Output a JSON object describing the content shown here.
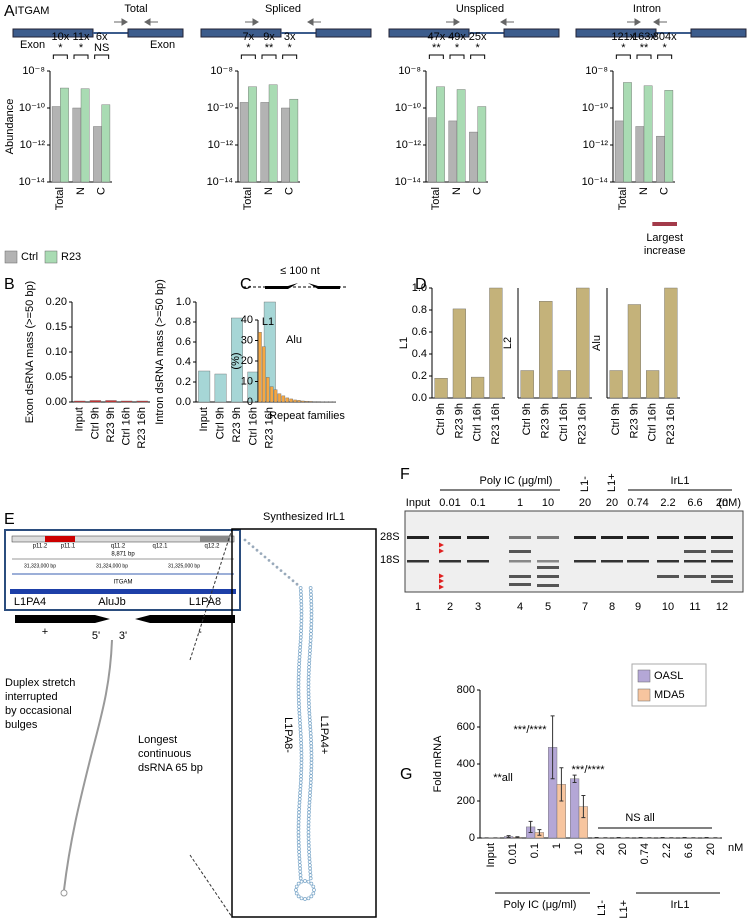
{
  "panel_labels": [
    "A",
    "B",
    "C",
    "D",
    "E",
    "F",
    "G"
  ],
  "chart_data": [
    {
      "type": "bar",
      "title": "Total",
      "gene": "ITGAM",
      "exon_labels": [
        "Exon",
        "Exon"
      ],
      "ylabel": "Abundance",
      "log_y": true,
      "categories": [
        "Total",
        "N",
        "C"
      ],
      "series": [
        {
          "name": "Ctrl",
          "color": "#b3b3b3",
          "values": [
            1.2e-10,
            1e-10,
            1e-11
          ]
        },
        {
          "name": "R23",
          "color": "#a9dbb3",
          "values": [
            1.2e-09,
            1.1e-09,
            1.5e-10
          ]
        }
      ],
      "ylim": [
        1e-14,
        1e-08
      ],
      "yticks": [
        {
          "value": 1e-14,
          "label": "10⁻¹⁴"
        },
        {
          "value": 1e-12,
          "label": "10⁻¹²"
        },
        {
          "value": 1e-10,
          "label": "10⁻¹⁰"
        },
        {
          "value": 1e-08,
          "label": "10⁻⁸"
        }
      ],
      "annotations": [
        {
          "fold": "10x",
          "sig": "*"
        },
        {
          "fold": "11x",
          "sig": "*"
        },
        {
          "fold": "6x",
          "sig": "NS"
        }
      ],
      "legend": "bottom-left"
    },
    {
      "type": "bar",
      "title": "Spliced",
      "log_y": true,
      "categories": [
        "Total",
        "N",
        "C"
      ],
      "series": [
        {
          "color": "#b3b3b3",
          "values": [
            2e-10,
            2e-10,
            1e-10
          ]
        },
        {
          "color": "#a9dbb3",
          "values": [
            1.4e-09,
            1.8e-09,
            3e-10
          ]
        }
      ],
      "ylim": [
        1e-14,
        1e-08
      ],
      "yticks": [
        {
          "value": 1e-14,
          "label": "10⁻¹⁴"
        },
        {
          "value": 1e-12,
          "label": "10⁻¹²"
        },
        {
          "value": 1e-10,
          "label": "10⁻¹⁰"
        },
        {
          "value": 1e-08,
          "label": "10⁻⁸"
        }
      ],
      "annotations": [
        {
          "fold": "7x",
          "sig": "*"
        },
        {
          "fold": "9x",
          "sig": "**"
        },
        {
          "fold": "3x",
          "sig": "*"
        }
      ]
    },
    {
      "type": "bar",
      "title": "Unspliced",
      "log_y": true,
      "categories": [
        "Total",
        "N",
        "C"
      ],
      "series": [
        {
          "color": "#b3b3b3",
          "values": [
            3e-11,
            2e-11,
            5e-12
          ]
        },
        {
          "color": "#a9dbb3",
          "values": [
            1.4e-09,
            1e-09,
            1.2e-10
          ]
        }
      ],
      "ylim": [
        1e-14,
        1e-08
      ],
      "yticks": [
        {
          "value": 1e-14,
          "label": "10⁻¹⁴"
        },
        {
          "value": 1e-12,
          "label": "10⁻¹²"
        },
        {
          "value": 1e-10,
          "label": "10⁻¹⁰"
        },
        {
          "value": 1e-08,
          "label": "10⁻⁸"
        }
      ],
      "annotations": [
        {
          "fold": "47x",
          "sig": "**"
        },
        {
          "fold": "49x",
          "sig": "*"
        },
        {
          "fold": "25x",
          "sig": "*"
        }
      ]
    },
    {
      "type": "bar",
      "title": "Intron",
      "log_y": true,
      "categories": [
        "Total",
        "N",
        "C"
      ],
      "series": [
        {
          "color": "#b3b3b3",
          "values": [
            2e-11,
            1e-11,
            3e-12
          ]
        },
        {
          "color": "#a9dbb3",
          "values": [
            2.4e-09,
            1.6e-09,
            9e-10
          ]
        }
      ],
      "ylim": [
        1e-14,
        1e-08
      ],
      "yticks": [
        {
          "value": 1e-14,
          "label": "10⁻¹⁴"
        },
        {
          "value": 1e-12,
          "label": "10⁻¹²"
        },
        {
          "value": 1e-10,
          "label": "10⁻¹⁰"
        },
        {
          "value": 1e-08,
          "label": "10⁻⁸"
        }
      ],
      "annotations": [
        {
          "fold": "121x",
          "sig": "*"
        },
        {
          "fold": "163x",
          "sig": "**"
        },
        {
          "fold": "304x",
          "sig": "*"
        }
      ],
      "note": [
        "Largest",
        "increase"
      ]
    },
    {
      "type": "bar",
      "ylabel": "Exon dsRNA mass (>=50 bp)",
      "categories": [
        "Input",
        "Ctrl 9h",
        "R23 9h",
        "Ctrl 16h",
        "R23 16h"
      ],
      "values": [
        0.002,
        0.003,
        0.003,
        0.002,
        0.002
      ],
      "color": "#d62728",
      "ylim": [
        0,
        0.2
      ],
      "yticks": [
        {
          "value": 0,
          "label": "0.00"
        },
        0.05,
        {
          "value": 0.1,
          "label": "0.10"
        },
        0.15,
        {
          "value": 0.2,
          "label": "0.20"
        }
      ]
    },
    {
      "type": "bar",
      "ylabel": "Intron dsRNA mass (>=50 bp)",
      "categories": [
        "Input",
        "Ctrl 9h",
        "R23 9h",
        "Ctrl 16h",
        "R23 16h"
      ],
      "values": [
        0.31,
        0.28,
        0.84,
        0.3,
        1.0
      ],
      "color": "#a6d6d6",
      "ylim": [
        0,
        1
      ],
      "yticks": [
        {
          "value": 0,
          "label": "0.0"
        },
        0.2,
        0.4,
        0.6,
        0.8,
        {
          "value": 1,
          "label": "1.0"
        }
      ]
    },
    {
      "type": "bar",
      "ylabel": "(%)",
      "xlabel": "Repeat families",
      "top_label": "≤ 100 nt",
      "annotations": [
        "L1",
        "Alu"
      ],
      "categories": [
        null,
        null,
        null,
        null,
        null,
        null,
        null,
        null,
        null,
        null,
        null,
        null,
        null,
        null,
        null,
        null,
        null,
        null,
        null,
        null
      ],
      "values": [
        34,
        27,
        12,
        7.5,
        6,
        4,
        3,
        2,
        1.5,
        1,
        0.8,
        0.5,
        0.4,
        0.3,
        0.2,
        0.2,
        0.1,
        0.1,
        0.1,
        0.1
      ],
      "color": "#f5a742",
      "ylim": [
        0,
        40
      ],
      "yticks": [
        0,
        10,
        20,
        30,
        40
      ]
    },
    {
      "type": "bar",
      "ylabel": "L1",
      "categories": [
        "Ctrl 9h",
        "R23 9h",
        "Ctrl 16h",
        "R23 16h"
      ],
      "values": [
        0.18,
        0.81,
        0.19,
        1.0
      ],
      "color": "#c4b27a",
      "ylim": [
        0,
        1
      ],
      "yticks": [
        {
          "value": 0,
          "label": "0.0"
        },
        0.2,
        0.4,
        0.6,
        0.8,
        {
          "value": 1,
          "label": "1.0"
        }
      ]
    },
    {
      "type": "bar",
      "ylabel": "L2",
      "categories": [
        "Ctrl 9h",
        "R23 9h",
        "Ctrl 16h",
        "R23 16h"
      ],
      "values": [
        0.25,
        0.88,
        0.25,
        1.0
      ],
      "color": "#c4b27a",
      "ylim": [
        0,
        1
      ]
    },
    {
      "type": "bar",
      "ylabel": "Alu",
      "categories": [
        "Ctrl 9h",
        "R23 9h",
        "Ctrl 16h",
        "R23 16h"
      ],
      "values": [
        0.25,
        0.85,
        0.25,
        1.0
      ],
      "color": "#c4b27a",
      "ylim": [
        0,
        1
      ]
    },
    {
      "type": "bar",
      "ylabel": "Fold mRNA",
      "categories": [
        "Input",
        "0.01",
        "0.1",
        "1",
        "10",
        "20",
        "20",
        "0.74",
        "2.2",
        "6.6",
        "20"
      ],
      "series": [
        {
          "name": "OASL",
          "color": "#b4a7d6",
          "values": [
            1,
            8,
            60,
            490,
            320,
            2,
            2,
            2,
            2,
            2,
            2
          ],
          "errors": [
            0,
            5,
            30,
            170,
            20,
            1,
            1,
            1,
            1,
            1,
            1
          ]
        },
        {
          "name": "MDA5",
          "color": "#f7c59f",
          "values": [
            1,
            4,
            30,
            290,
            170,
            1,
            1,
            1,
            1,
            1,
            1
          ],
          "errors": [
            0,
            3,
            15,
            90,
            60,
            0.5,
            0.5,
            0.5,
            0.5,
            0.5,
            0.5
          ]
        }
      ],
      "ylim": [
        0,
        800
      ],
      "yticks": [
        0,
        200,
        400,
        600,
        800
      ],
      "annotations": [
        "**all",
        "***/****",
        "***/****",
        "NS all"
      ],
      "group_labels": [
        "Poly IC (μg/ml)",
        "L1-",
        "L1+",
        "IrL1"
      ],
      "unit_label": "nM",
      "legend": "top-right"
    }
  ],
  "panel_e": {
    "ideogram": [
      "p11.2",
      "p11.1",
      "q11.2",
      "q12.1",
      "q12.2"
    ],
    "span": "8,871 bp",
    "coords": [
      "31,323,000 bp",
      "31,324,000 bp",
      "31,325,000 bp"
    ],
    "gene": "ITGAM",
    "repeats": [
      "L1PA4",
      "AluJb",
      "L1PA8"
    ],
    "strands": [
      "+",
      "-"
    ],
    "ends": [
      "5'",
      "3'"
    ],
    "duplex_note": [
      "Duplex stretch",
      "interrupted",
      "by occasional",
      "bulges"
    ],
    "longest_note": [
      "Longest",
      "continuous",
      "dsRNA 65 bp"
    ],
    "title": "Synthesized IrL1",
    "arms": [
      "L1PA8-",
      "L1PA4+"
    ]
  },
  "panel_f": {
    "groups": [
      "Poly IC (μg/ml)",
      "L1-",
      "L1+",
      "IrL1"
    ],
    "lanes": [
      "Input",
      "0.01",
      "0.1",
      "1",
      "10",
      "20",
      "20",
      "0.74",
      "2.2",
      "6.6",
      "20"
    ],
    "unit": "(nM)",
    "markers": [
      "28S",
      "18S"
    ],
    "lane_numbers": [
      "1",
      "2",
      "3",
      "4",
      "5",
      "7",
      "8",
      "9",
      "10",
      "11",
      "12"
    ]
  }
}
